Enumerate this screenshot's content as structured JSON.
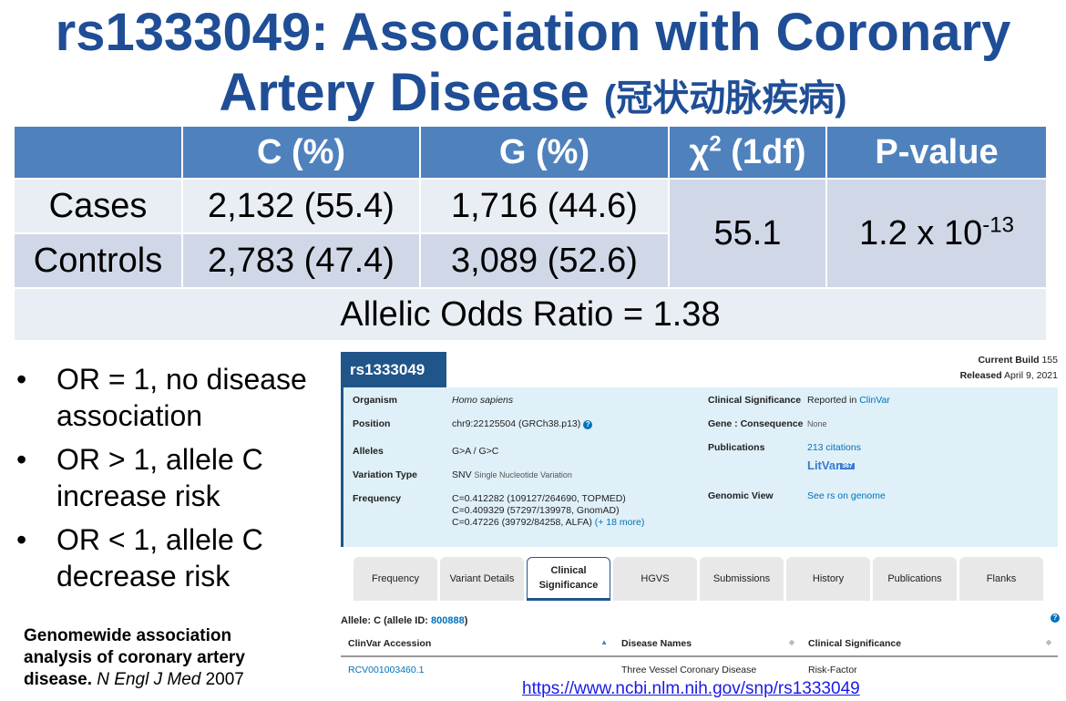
{
  "title": {
    "line1": "rs1333049: Association with Coronary",
    "line2": "Artery Disease",
    "line2_cn": "(冠状动脉疾病)"
  },
  "stats_table": {
    "headers": [
      "",
      "C (%)",
      "G (%)",
      "χ",
      "2",
      " (1df)",
      "P-value"
    ],
    "rows": [
      {
        "label": "Cases",
        "c": "2,132 (55.4)",
        "g": "1,716 (44.6)"
      },
      {
        "label": "Controls",
        "c": "2,783 (47.4)",
        "g": "3,089 (52.6)"
      }
    ],
    "chi2": "55.1",
    "pvalue_base": "1.2 x 10",
    "pvalue_exp": "-13",
    "odds_ratio": "Allelic Odds Ratio = 1.38"
  },
  "bullets": [
    {
      "dot": "•",
      "text": "OR = 1, no disease association"
    },
    {
      "dot": "•",
      "text": "OR > 1, allele C increase risk"
    },
    {
      "dot": "•",
      "text": "OR < 1, allele C decrease risk"
    }
  ],
  "reference": {
    "bold": "Genomewide association analysis of coronary artery disease.",
    "journal": "N Engl J Med",
    "year": "2007"
  },
  "ncbi": {
    "rsid": "rs1333049",
    "current_build_label": "Current Build",
    "current_build": "155",
    "released_label": "Released",
    "released": "April 9, 2021",
    "organism_label": "Organism",
    "organism": "Homo sapiens",
    "position_label": "Position",
    "position": "chr9:22125504 (GRCh38.p13)",
    "help_icon": "?",
    "alleles_label": "Alleles",
    "alleles": "G>A / G>C",
    "variation_label": "Variation Type",
    "variation": "SNV",
    "variation_desc": "Single Nucleotide Variation",
    "frequency_label": "Frequency",
    "freq1": "C=0.412282 (109127/264690, TOPMED)",
    "freq2": "C=0.409329 (57297/139978, GnomAD)",
    "freq3": "C=0.47226 (39792/84258, ALFA)",
    "freq_more": "(+ 18 more)",
    "clin_sig_label": "Clinical Significance",
    "clin_sig_prefix": "Reported in",
    "clin_sig_link": "ClinVar",
    "gene_label": "Gene : Consequence",
    "gene": "None",
    "pubs_label": "Publications",
    "pubs": "213 citations",
    "litvar": "LitVar",
    "litvar_count": "367",
    "genomic_label": "Genomic View",
    "genomic": "See rs on genome",
    "tabs": [
      {
        "label": "Frequency"
      },
      {
        "label": "Variant Details"
      },
      {
        "label": "Clinical Significance",
        "active": true
      },
      {
        "label": "HGVS"
      },
      {
        "label": "Submissions"
      },
      {
        "label": "History"
      },
      {
        "label": "Publications"
      },
      {
        "label": "Flanks"
      }
    ],
    "allele_prefix": "Allele: C (allele ID:",
    "allele_id": "800888",
    "allele_suffix": ")",
    "cv_headers": [
      "ClinVar Accession",
      "Disease Names",
      "Clinical Significance"
    ],
    "cv_rows": [
      [
        "RCV001003460.1",
        "Three Vessel Coronary Disease",
        "Risk-Factor"
      ]
    ],
    "accent": "#20558a"
  },
  "url": "https://www.ncbi.nlm.nih.gov/snp/rs1333049"
}
